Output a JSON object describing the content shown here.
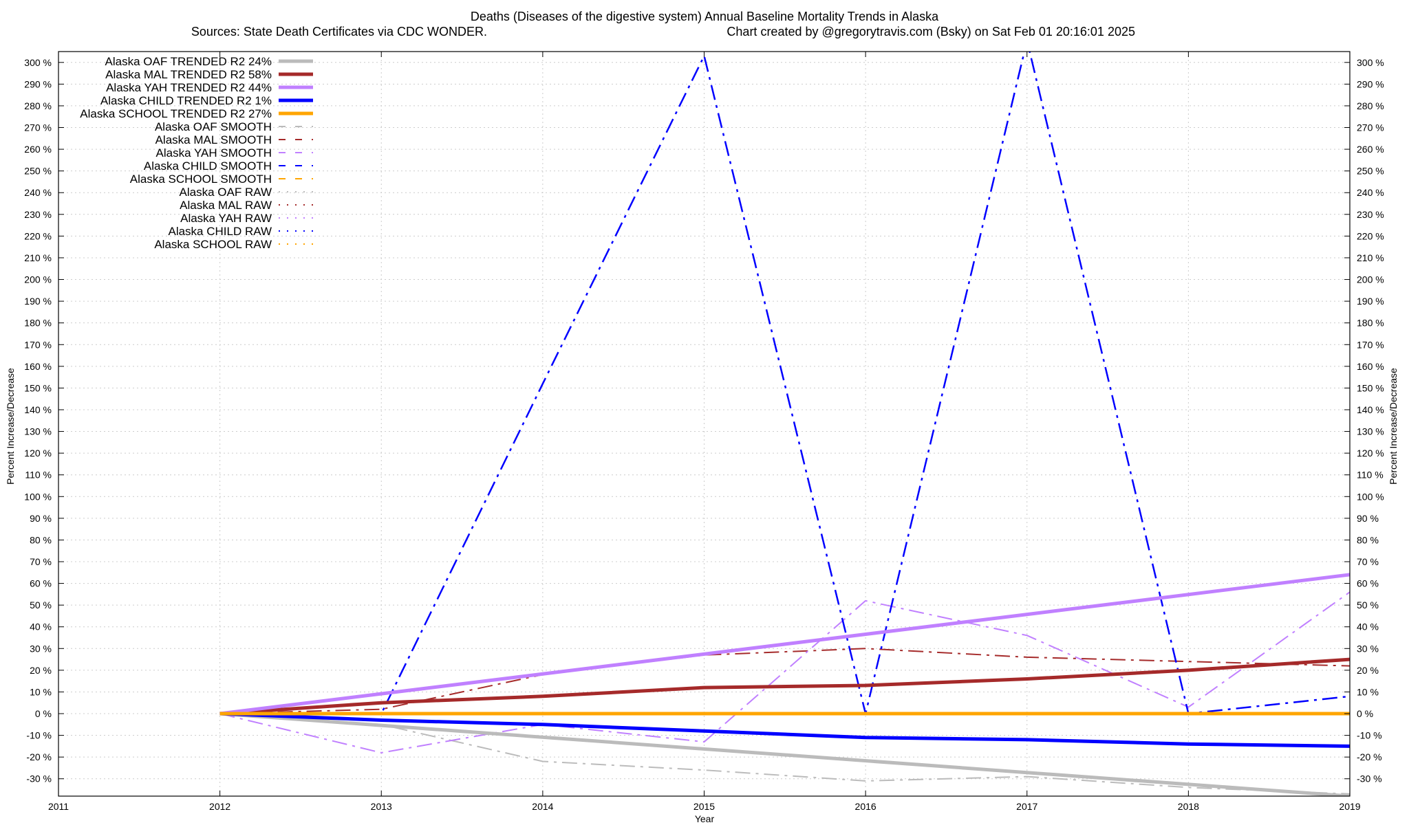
{
  "chart_data": {
    "type": "line",
    "title": "Deaths (Diseases of the digestive system)  Annual Baseline Mortality Trends in Alaska",
    "subtitle_left": "Sources: State Death Certificates via CDC WONDER.",
    "subtitle_right": "Chart created by @gregorytravis.com (Bsky) on Sat Feb 01 20:16:01 2025",
    "xlabel": "Year",
    "ylabel": "Percent Increase/Decrease",
    "xlim": [
      2011,
      2019
    ],
    "ylim": [
      -38,
      305
    ],
    "x_ticks": [
      2011,
      2012,
      2013,
      2014,
      2015,
      2016,
      2017,
      2018,
      2019
    ],
    "y_ticks": [
      -30,
      -20,
      -10,
      0,
      10,
      20,
      30,
      40,
      50,
      60,
      70,
      80,
      90,
      100,
      110,
      120,
      130,
      140,
      150,
      160,
      170,
      180,
      190,
      200,
      210,
      220,
      230,
      240,
      250,
      260,
      270,
      280,
      290,
      300
    ],
    "y_tick_suffix": " %",
    "grid": true,
    "legend_position": "top-left",
    "series": [
      {
        "name": "Alaska OAF TRENDED R2  24%",
        "color": "#bbbbbb",
        "style": "solid",
        "width": 5,
        "x": [
          2012,
          2019
        ],
        "values": [
          0,
          -38
        ]
      },
      {
        "name": "Alaska MAL TRENDED R2  58%",
        "color": "#a52a2a",
        "style": "solid",
        "width": 5,
        "x": [
          2012,
          2013,
          2014,
          2015,
          2016,
          2017,
          2018,
          2019
        ],
        "values": [
          0,
          5,
          8,
          12,
          13,
          16,
          20,
          25
        ]
      },
      {
        "name": "Alaska YAH TRENDED R2  44%",
        "color": "#c080ff",
        "style": "solid",
        "width": 5,
        "x": [
          2012,
          2019
        ],
        "values": [
          0,
          64
        ]
      },
      {
        "name": "Alaska CHILD TRENDED R2   1%",
        "color": "#0000ff",
        "style": "solid",
        "width": 5,
        "x": [
          2012,
          2013,
          2014,
          2015,
          2016,
          2017,
          2018,
          2019
        ],
        "values": [
          0,
          -3,
          -5,
          -8,
          -11,
          -12,
          -14,
          -15
        ]
      },
      {
        "name": "Alaska SCHOOL TRENDED R2  27%",
        "color": "#ffa500",
        "style": "solid",
        "width": 5,
        "x": [
          2012,
          2019
        ],
        "values": [
          0,
          0
        ]
      },
      {
        "name": "Alaska OAF SMOOTH",
        "color": "#bbbbbb",
        "style": "dashdot",
        "width": 2,
        "x": [
          2012,
          2013,
          2014,
          2015,
          2016,
          2017,
          2018,
          2019
        ],
        "values": [
          0,
          -5,
          -22,
          -26,
          -31,
          -29,
          -34,
          -37
        ]
      },
      {
        "name": "Alaska MAL SMOOTH",
        "color": "#a52a2a",
        "style": "dashdot",
        "width": 2,
        "x": [
          2012,
          2013,
          2014,
          2015,
          2016,
          2017,
          2018,
          2019
        ],
        "values": [
          0,
          2,
          18,
          27,
          30,
          26,
          24,
          22
        ]
      },
      {
        "name": "Alaska YAH SMOOTH",
        "color": "#c080ff",
        "style": "dashdot",
        "width": 2,
        "x": [
          2012,
          2013,
          2014,
          2015,
          2016,
          2017,
          2018,
          2019
        ],
        "values": [
          0,
          -18,
          -5,
          -13,
          52,
          36,
          3,
          56
        ]
      },
      {
        "name": "Alaska CHILD SMOOTH",
        "color": "#0000ff",
        "style": "dashdot",
        "width": 2.5,
        "x": [
          2012,
          2013,
          2014,
          2015,
          2016,
          2017,
          2018,
          2019
        ],
        "values": [
          0,
          0,
          152,
          303,
          0,
          310,
          0,
          8
        ]
      },
      {
        "name": "Alaska SCHOOL SMOOTH",
        "color": "#ffa500",
        "style": "dashdot",
        "width": 2,
        "x": [
          2012,
          2019
        ],
        "values": [
          0,
          0
        ]
      },
      {
        "name": "Alaska OAF RAW",
        "color": "#bbbbbb",
        "style": "dotted",
        "width": 2,
        "x": [],
        "values": []
      },
      {
        "name": "Alaska MAL RAW",
        "color": "#a52a2a",
        "style": "dotted",
        "width": 2,
        "x": [],
        "values": []
      },
      {
        "name": "Alaska YAH RAW",
        "color": "#c080ff",
        "style": "dotted",
        "width": 2,
        "x": [],
        "values": []
      },
      {
        "name": "Alaska CHILD RAW",
        "color": "#0000ff",
        "style": "dotted",
        "width": 2,
        "x": [],
        "values": []
      },
      {
        "name": "Alaska SCHOOL RAW",
        "color": "#ffa500",
        "style": "dotted",
        "width": 2,
        "x": [],
        "values": []
      }
    ]
  }
}
